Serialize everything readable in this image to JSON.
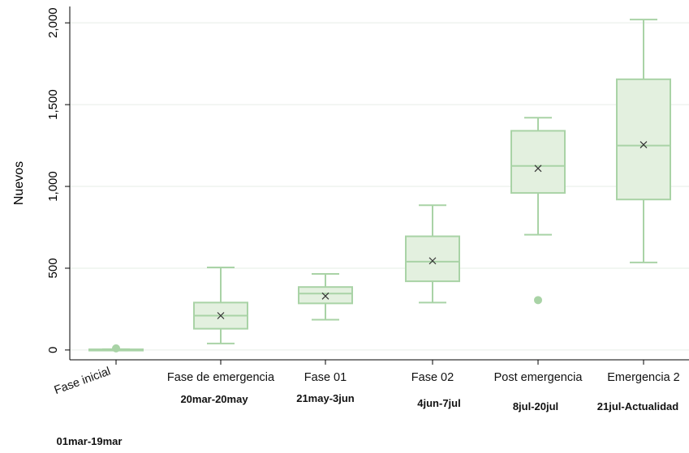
{
  "chart_data": {
    "type": "box",
    "title": "",
    "ylabel": "Nuevos",
    "ylim": [
      -60,
      2100
    ],
    "yticks": [
      0,
      500,
      1000,
      1500,
      2000
    ],
    "ytick_labels": [
      "0",
      "500",
      "1,000",
      "1,500",
      "2,000"
    ],
    "grid": true,
    "colors": {
      "fill": "#e3f0df",
      "stroke": "#a9d3a6",
      "grid": "#e6eee6",
      "axis": "#000000"
    },
    "categories": [
      "Fase inicial",
      "Fase de emergencia",
      "Fase 01",
      "Fase 02",
      "Post emergencia",
      "Emergencia 2"
    ],
    "date_ranges": [
      "01mar-19mar",
      "20mar-20may",
      "21may-3jun",
      "4jun-7jul",
      "8jul-20jul",
      "21jul-Actualidad"
    ],
    "boxes": [
      {
        "min": 0,
        "q1": 0,
        "median": 2,
        "q3": 4,
        "max": 5,
        "mean": null,
        "outliers": [
          10
        ]
      },
      {
        "min": 40,
        "q1": 130,
        "median": 210,
        "q3": 290,
        "max": 505,
        "mean": 210,
        "outliers": []
      },
      {
        "min": 185,
        "q1": 285,
        "median": 345,
        "q3": 385,
        "max": 465,
        "mean": 330,
        "outliers": []
      },
      {
        "min": 290,
        "q1": 420,
        "median": 540,
        "q3": 695,
        "max": 885,
        "mean": 545,
        "outliers": []
      },
      {
        "min": 705,
        "q1": 960,
        "median": 1125,
        "q3": 1340,
        "max": 1420,
        "mean": 1110,
        "outliers": [
          305
        ]
      },
      {
        "min": 535,
        "q1": 920,
        "median": 1250,
        "q3": 1655,
        "max": 2020,
        "mean": 1255,
        "outliers": []
      }
    ]
  }
}
